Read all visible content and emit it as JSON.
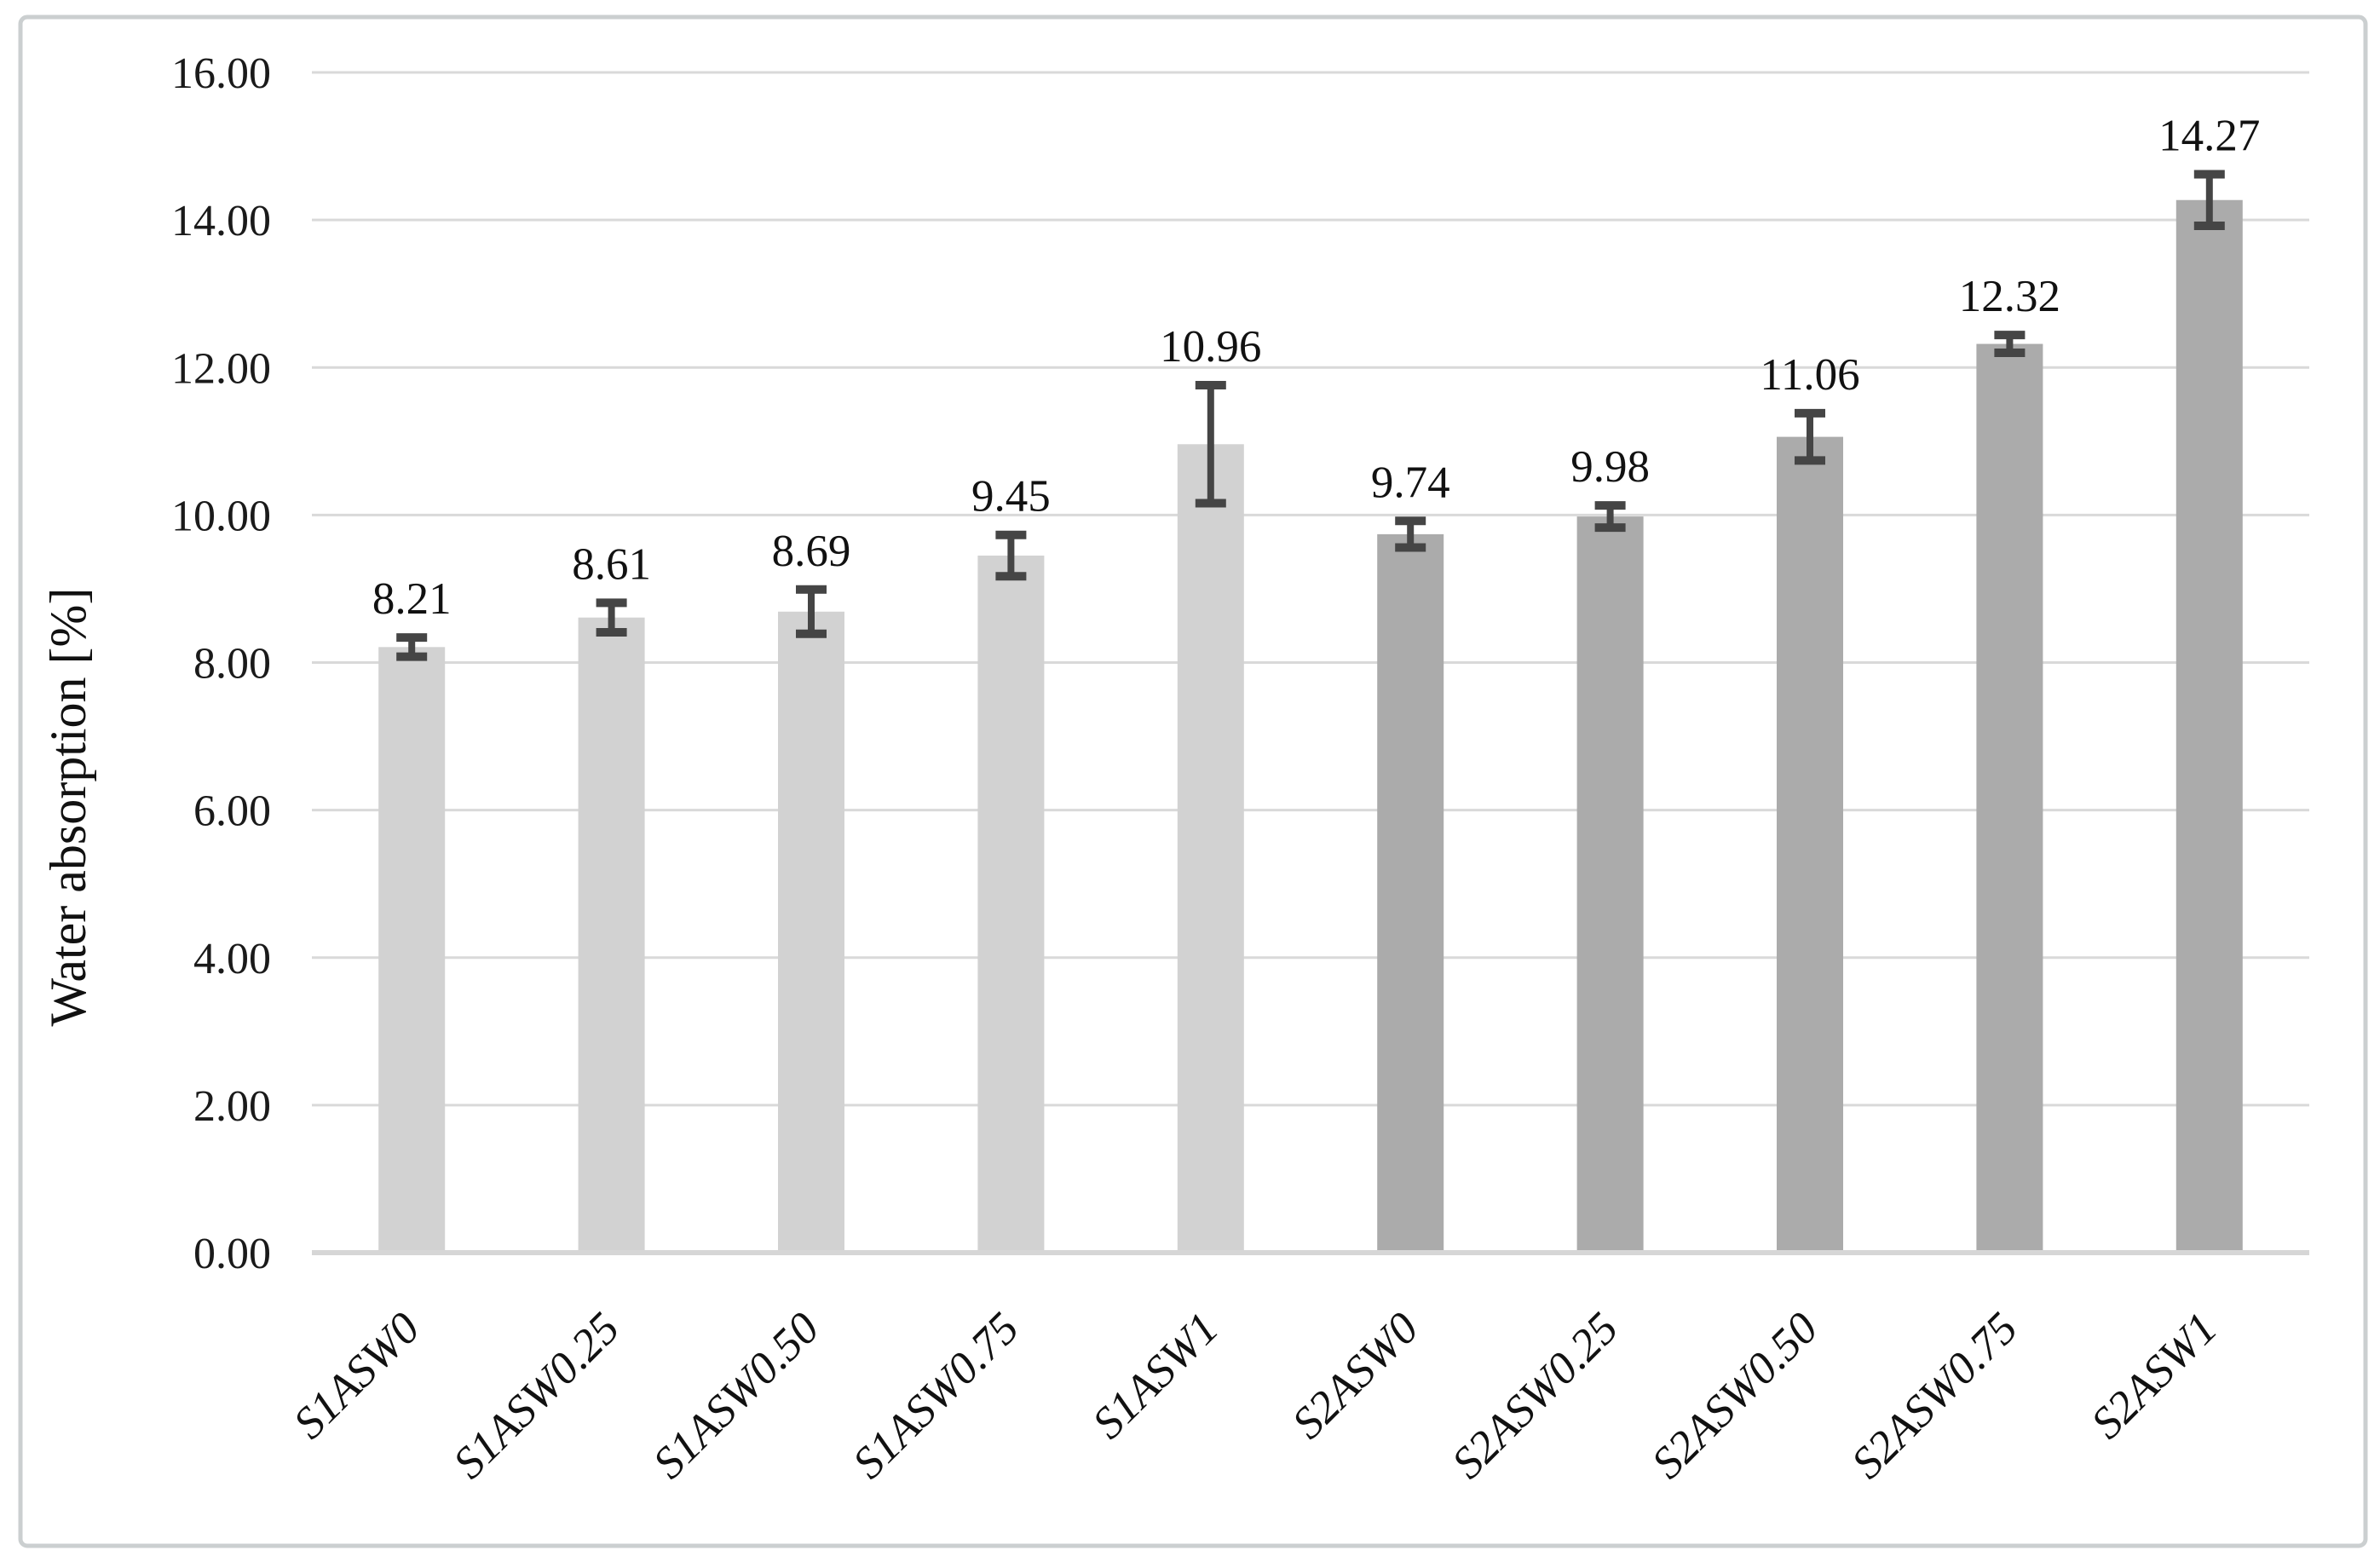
{
  "figure": {
    "background_color": "#ffffff",
    "border_color": "#cbcfd0"
  },
  "chart_data": {
    "type": "bar",
    "title": "",
    "xlabel": "",
    "ylabel": "Water absorption [%]",
    "ylim": [
      0,
      16
    ],
    "ytick_step": 2,
    "ytick_labels": [
      "0.00",
      "2.00",
      "4.00",
      "6.00",
      "8.00",
      "10.00",
      "12.00",
      "14.00",
      "16.00"
    ],
    "grid": true,
    "legend": "none",
    "categories": [
      "S1ASW0",
      "S1ASW0.25",
      "S1ASW0.50",
      "S1ASW0.75",
      "S1ASW1",
      "S2ASW0",
      "S2ASW0.25",
      "S2ASW0.50",
      "S2ASW0.75",
      "S2ASW1"
    ],
    "values": [
      8.21,
      8.61,
      8.69,
      9.45,
      10.96,
      9.74,
      9.98,
      11.06,
      12.32,
      14.27
    ],
    "data_labels": [
      "8.21",
      "8.61",
      "8.69",
      "9.45",
      "10.96",
      "9.74",
      "9.98",
      "11.06",
      "12.32",
      "14.27"
    ],
    "errors": [
      0.13,
      0.2,
      0.3,
      0.28,
      0.8,
      0.18,
      0.15,
      0.32,
      0.12,
      0.35
    ],
    "bar_colors": [
      "#d2d2d2",
      "#d2d2d2",
      "#d2d2d2",
      "#d2d2d2",
      "#d2d2d2",
      "#ababab",
      "#ababab",
      "#ababab",
      "#ababab",
      "#ababab"
    ],
    "group_colors": {
      "S1": "#d2d2d2",
      "S2": "#ababab"
    },
    "error_bar_color": "#454545",
    "gridline_color": "#d9d9d9",
    "axis_line_color": "#d6d6d6",
    "tick_label_color": "#1a1a1a",
    "data_label_color": "#111111"
  }
}
